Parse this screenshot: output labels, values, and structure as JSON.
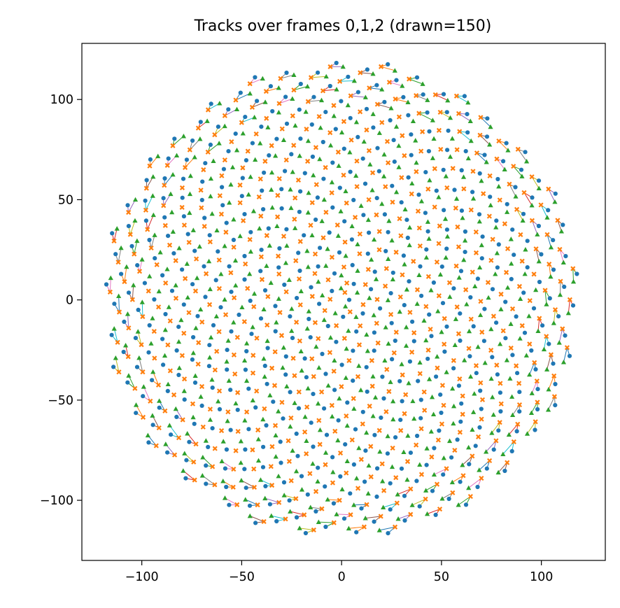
{
  "chart_data": {
    "type": "scatter",
    "title": "Tracks over frames 0,1,2 (drawn=150)",
    "xlabel": "",
    "ylabel": "",
    "xlim": [
      -130,
      132
    ],
    "ylim": [
      -130,
      128
    ],
    "x_ticks": [
      -100,
      -50,
      0,
      50,
      100
    ],
    "y_ticks": [
      -100,
      -50,
      0,
      50,
      100
    ],
    "x_tick_labels": [
      "−100",
      "−50",
      "0",
      "50",
      "100"
    ],
    "y_tick_labels": [
      "−100",
      "−50",
      "0",
      "50",
      "100"
    ],
    "grid": false,
    "legend": "none",
    "marker_colors": {
      "frame_0": "#1f77b4",
      "frame_1": "#ff7f0e",
      "frame_2": "#2ca02c"
    },
    "marker_shapes": {
      "frame_0": "circle",
      "frame_1": "x",
      "frame_2": "triangle"
    },
    "track_colors": [
      "#1f77b4",
      "#ff7f0e",
      "#2ca02c",
      "#d62728",
      "#9467bd",
      "#8c564b",
      "#e377c2",
      "#7f7f7f",
      "#bcbd22",
      "#17becf"
    ],
    "disc_radius": 120,
    "num_points_per_frame": 500,
    "tracks_drawn": 150,
    "sample_track": {
      "frame_0": [
        100.0,
        40.0
      ],
      "frame_1": [
        98.0,
        39.0
      ],
      "frame_2": [
        104.0,
        41.0
      ]
    }
  }
}
